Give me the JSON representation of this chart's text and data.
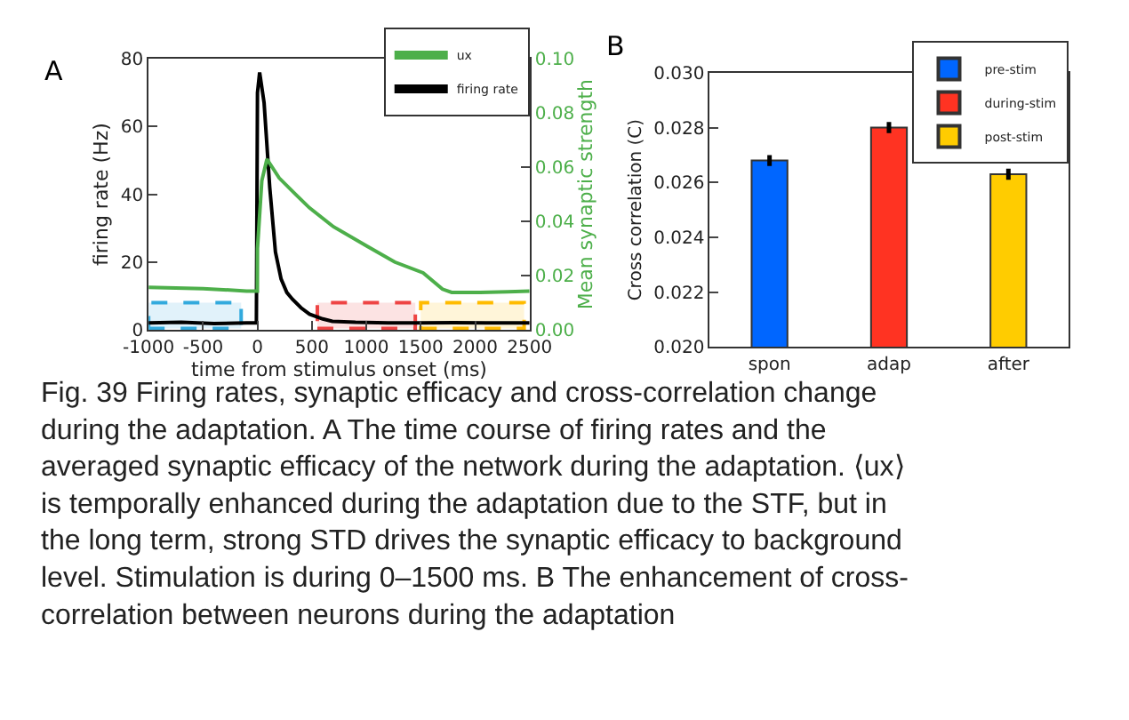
{
  "chart_data": [
    {
      "type": "line",
      "xlabel": "time from stimulus onset (ms)",
      "ylabel": "firing rate (Hz)",
      "y2label": "Mean synaptic strength",
      "xlim": [
        -1000,
        2500
      ],
      "xticks": [
        -1000,
        -500,
        0,
        500,
        1000,
        1500,
        2000,
        2500
      ],
      "ylim": [
        0,
        80
      ],
      "yticks": [
        0,
        20,
        40,
        60,
        80
      ],
      "y2lim": [
        0,
        0.1
      ],
      "y2ticks": [
        {
          "value": 0,
          "label": "0.00"
        },
        {
          "value": 0.02,
          "label": "0.02"
        },
        {
          "value": 0.04,
          "label": "0.04"
        },
        {
          "value": 0.06,
          "label": "0.06"
        },
        {
          "value": 0.08,
          "label": "0.08"
        },
        {
          "value": 0.1,
          "label": "0.10"
        }
      ],
      "series": [
        {
          "name": "ux",
          "color": "#4daf4a",
          "axis": "y2",
          "x": [
            -1000,
            -500,
            -100,
            -1,
            0,
            40,
            87,
            200,
            350,
            478,
            700,
            1000,
            1261,
            1522,
            1700,
            1784,
            2046,
            2300,
            2500
          ],
          "values": [
            0.0157,
            0.0152,
            0.0143,
            0.0143,
            0.03,
            0.055,
            0.063,
            0.056,
            0.05,
            0.045,
            0.038,
            0.031,
            0.025,
            0.021,
            0.015,
            0.0138,
            0.0138,
            0.014,
            0.0143
          ]
        },
        {
          "name": "firing rate",
          "color": "#000000",
          "x": [
            -1000,
            -700,
            -400,
            -100,
            -10,
            0,
            20,
            61,
            113,
            165,
            217,
            270,
            322,
            400,
            478,
            600,
            688,
            900,
            1200,
            1500,
            1800,
            2100,
            2500
          ],
          "values": [
            2,
            2.2,
            1.8,
            2,
            2,
            70,
            76,
            67,
            42,
            23,
            15,
            11,
            9,
            6.5,
            4.6,
            3.2,
            2.5,
            2.2,
            2,
            2,
            2.1,
            2,
            2
          ]
        }
      ],
      "bands": [
        {
          "axis": "x",
          "from": -1000,
          "to": -150,
          "color": "#33aadd"
        },
        {
          "axis": "x",
          "from": 550,
          "to": 1450,
          "color": "#ee4444"
        },
        {
          "axis": "x",
          "from": 1500,
          "to": 2450,
          "color": "#ffbb00"
        }
      ],
      "legend": "top right",
      "marker": "none",
      "grid": false,
      "annotations": [
        "A"
      ]
    },
    {
      "type": "bar",
      "ylabel": "Cross correlation (C)",
      "categories": [
        "spon",
        "adap",
        "after"
      ],
      "ylim": [
        0.02,
        0.03
      ],
      "yticks": [
        {
          "value": 0.02,
          "label": "0.020"
        },
        {
          "value": 0.022,
          "label": "0.022"
        },
        {
          "value": 0.024,
          "label": "0.024"
        },
        {
          "value": 0.026,
          "label": "0.026"
        },
        {
          "value": 0.028,
          "label": "0.028"
        },
        {
          "value": 0.03,
          "label": "0.030"
        }
      ],
      "series": [
        {
          "name": "pre-stim",
          "color": "#0066ff",
          "values": [
            0.0268,
            null,
            null
          ],
          "errors": [
            0.0002,
            null,
            null
          ]
        },
        {
          "name": "during-stim",
          "color": "#ff3322",
          "values": [
            null,
            0.028,
            null
          ],
          "errors": [
            null,
            0.0002,
            null
          ]
        },
        {
          "name": "post-stim",
          "color": "#ffcc00",
          "values": [
            null,
            null,
            0.0263
          ],
          "errors": [
            null,
            null,
            0.0002
          ]
        }
      ],
      "legend": "top right",
      "grid": false,
      "annotations": [
        "B",
        "Fig. 39 Firing rates, synaptic efficacy and cross-correlation change during the adaptation. A The time course of firing rates and the averaged synaptic efficacy of the network during the adaptation. ⟨ux⟩ is temporally enhanced during the adaptation due to the STF, but in the long term, strong STD drives the synaptic efficacy to background level. Stimulation is during 0–1500 ms. B The enhancement of cross-correlation between neurons during the adaptation"
      ]
    }
  ]
}
